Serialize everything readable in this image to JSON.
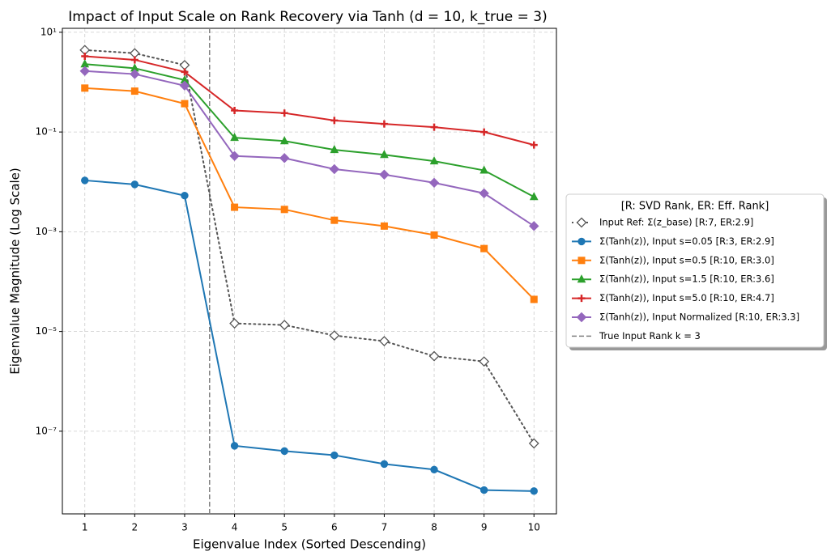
{
  "chart_data": {
    "type": "line",
    "title": "Impact of Input Scale on Rank Recovery via Tanh (d = 10, k_true = 3)",
    "x_label": "Eigenvalue Index (Sorted Descending)",
    "y_label": "Eigenvalue Magnitude (Log Scale)",
    "log_y": true,
    "grid": true,
    "x": [
      1,
      2,
      3,
      4,
      5,
      6,
      7,
      8,
      9,
      10
    ],
    "xlim": [
      0.55,
      10.45
    ],
    "xticks": [
      1,
      2,
      3,
      4,
      5,
      6,
      7,
      8,
      9,
      10
    ],
    "ylim": [
      2.2e-09,
      12
    ],
    "yticks": [
      {
        "value": 10,
        "label": "10¹"
      },
      {
        "value": 0.1,
        "label": "10⁻¹"
      },
      {
        "value": 0.001,
        "label": "10⁻³"
      },
      {
        "value": 1e-05,
        "label": "10⁻⁵"
      },
      {
        "value": 1e-07,
        "label": "10⁻⁷"
      }
    ],
    "legend_title": "[R: SVD Rank, ER: Eff. Rank]",
    "legend_position": "right",
    "series": [
      {
        "name": "Input Ref: Σ(z_base) [R:7, ER:2.9]",
        "color": "#555555",
        "marker": "diamond",
        "filled": false,
        "linestyle": "dotted",
        "values": [
          4.4,
          3.8,
          2.2,
          1.45e-05,
          1.35e-05,
          8.3e-06,
          6.4e-06,
          3.2e-06,
          2.5e-06,
          5.7e-08
        ]
      },
      {
        "name": "Σ(Tanh(z)), Input s=0.05 [R:3, ER:2.9]",
        "color": "#1f77b4",
        "marker": "circle",
        "filled": true,
        "linestyle": "solid",
        "values": [
          0.0107,
          0.0089,
          0.0053,
          5.1e-08,
          4e-08,
          3.3e-08,
          2.2e-08,
          1.7e-08,
          6.6e-09,
          6.3e-09
        ]
      },
      {
        "name": "Σ(Tanh(z)), Input s=0.5 [R:10, ER:3.0]",
        "color": "#ff7f0e",
        "marker": "square",
        "filled": true,
        "linestyle": "solid",
        "values": [
          0.76,
          0.66,
          0.37,
          0.0031,
          0.0028,
          0.0017,
          0.0013,
          0.00086,
          0.00046,
          4.4e-05
        ]
      },
      {
        "name": "Σ(Tanh(z)), Input s=1.5 [R:10, ER:3.6]",
        "color": "#2ca02c",
        "marker": "triangle",
        "filled": true,
        "linestyle": "solid",
        "values": [
          2.3,
          1.9,
          1.1,
          0.077,
          0.066,
          0.044,
          0.035,
          0.026,
          0.017,
          0.005
        ]
      },
      {
        "name": "Σ(Tanh(z)), Input s=5.0 [R:10, ER:4.7]",
        "color": "#d62728",
        "marker": "plus",
        "filled": true,
        "linestyle": "solid",
        "values": [
          3.3,
          2.8,
          1.6,
          0.27,
          0.24,
          0.17,
          0.145,
          0.125,
          0.1,
          0.055
        ]
      },
      {
        "name": "Σ(Tanh(z)), Input Normalized [R:10, ER:3.3]",
        "color": "#9467bd",
        "marker": "diamond",
        "filled": true,
        "linestyle": "solid",
        "values": [
          1.67,
          1.45,
          0.85,
          0.033,
          0.03,
          0.018,
          0.014,
          0.0096,
          0.0059,
          0.0013
        ]
      }
    ],
    "reference_line": {
      "x": 3.5,
      "name": "True Input Rank k = 3",
      "color": "#808080"
    }
  }
}
